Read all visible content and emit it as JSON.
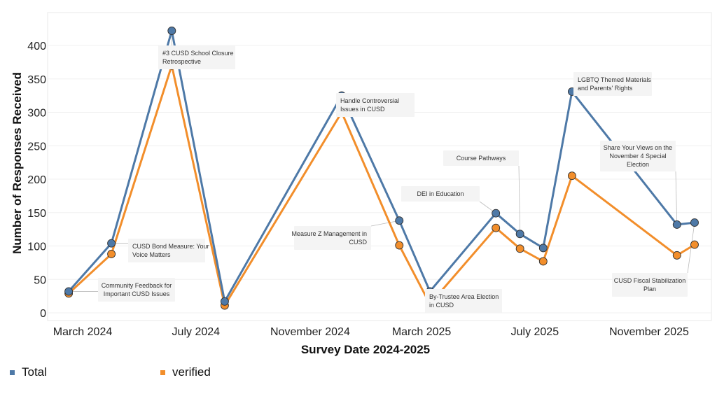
{
  "chart_data": {
    "type": "line",
    "title": "",
    "xlabel": "Survey Date 2024-2025",
    "ylabel": "Number of Responses Received",
    "ylim": [
      0,
      440
    ],
    "yticks": [
      0,
      50,
      100,
      150,
      200,
      250,
      300,
      350,
      400
    ],
    "xticks": [
      {
        "label": "March 2024",
        "date": "2024-03-01"
      },
      {
        "label": "July 2024",
        "date": "2024-07-01"
      },
      {
        "label": "November 2024",
        "date": "2024-11-01"
      },
      {
        "label": "March 2025",
        "date": "2025-03-01"
      },
      {
        "label": "July 2025",
        "date": "2025-07-01"
      },
      {
        "label": "November 2025",
        "date": "2025-11-01"
      }
    ],
    "x": [
      "2024-02-15",
      "2024-04-01",
      "2024-06-05",
      "2024-08-01",
      "2024-12-05",
      "2025-02-05",
      "2025-03-10",
      "2025-05-20",
      "2025-06-15",
      "2025-07-10",
      "2025-08-10",
      "2025-12-01",
      "2025-12-20"
    ],
    "series": [
      {
        "name": "Total",
        "color": "#4e79a7",
        "values": [
          32,
          104,
          422,
          17,
          325,
          138,
          32,
          149,
          118,
          97,
          331,
          132,
          135
        ]
      },
      {
        "name": "verified",
        "color": "#f28e2b",
        "values": [
          29,
          88,
          370,
          11,
          300,
          101,
          13,
          127,
          96,
          77,
          205,
          86,
          102
        ]
      }
    ],
    "annotations": [
      {
        "text": [
          "Community Feedback for",
          "Important CUSD Issues"
        ]
      },
      {
        "text": [
          "CUSD Bond Measure: Your",
          "Voice Matters"
        ]
      },
      {
        "text": [
          "#3 CUSD School Closure",
          "Retrospective"
        ]
      },
      {
        "text": [
          "Handle Controversial",
          "Issues in CUSD"
        ]
      },
      {
        "text": [
          "Measure Z Management in",
          "CUSD"
        ]
      },
      {
        "text": [
          "By-Trustee Area Election",
          "in CUSD"
        ]
      },
      {
        "text": [
          "DEI in Education"
        ]
      },
      {
        "text": [
          "Course Pathways"
        ]
      },
      {
        "text": [
          "LGBTQ Themed Materials",
          "and Parents' Rights"
        ]
      },
      {
        "text": [
          "Share Your Views on the",
          "November 4 Special",
          "Election"
        ]
      },
      {
        "text": [
          "CUSD Fiscal Stabilization",
          "Plan"
        ]
      }
    ],
    "grid": true,
    "legend_position": "bottom-left"
  }
}
